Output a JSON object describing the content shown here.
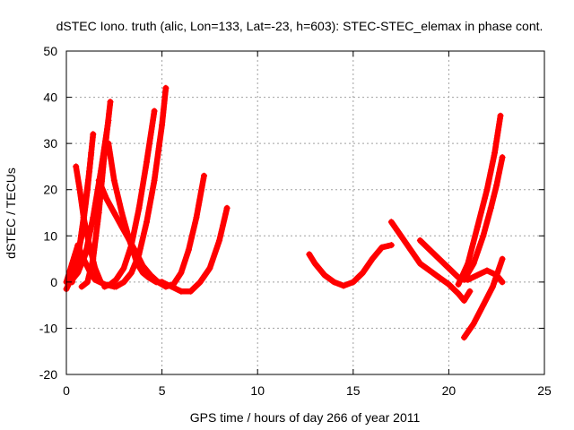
{
  "chart_data": {
    "type": "scatter",
    "title": "dSTEC Iono. truth (alic, Lon=133, Lat=-23, h=603): STEC-STEC_elemax in phase cont.",
    "xlabel": "GPS time / hours of day 266 of year 2011",
    "ylabel": "dSTEC  / TECUs",
    "xlim": [
      0,
      25
    ],
    "ylim": [
      -20,
      50
    ],
    "xticks": [
      0,
      5,
      10,
      15,
      20,
      25
    ],
    "yticks": [
      -20,
      -10,
      0,
      10,
      20,
      30,
      40,
      50
    ],
    "xtick_labels": [
      "0",
      "5",
      "10",
      "15",
      "20",
      "25"
    ],
    "ytick_labels": [
      "-20",
      "-10",
      "0",
      "10",
      "20",
      "30",
      "40",
      "50"
    ],
    "grid": true,
    "legend": "none",
    "marker": "+",
    "color": "#ff0000",
    "series": [
      {
        "x": [
          0.0,
          0.3,
          0.6,
          0.9,
          1.2,
          1.5,
          2.0,
          2.5
        ],
        "y": [
          0.0,
          4.0,
          8.0,
          5.0,
          2.5,
          0.5,
          -0.5,
          -1.0
        ]
      },
      {
        "x": [
          0.5,
          0.7,
          0.9,
          1.2,
          1.5,
          1.8
        ],
        "y": [
          25.0,
          20.0,
          14.0,
          8.0,
          3.0,
          0.0
        ]
      },
      {
        "x": [
          0.0,
          0.4,
          0.8,
          1.1,
          1.3
        ],
        "y": [
          -1.5,
          2.0,
          10.0,
          20.0,
          28.0
        ]
      },
      {
        "x": [
          0.3,
          0.6,
          0.9,
          1.2,
          1.4
        ],
        "y": [
          0.0,
          5.0,
          14.0,
          24.0,
          32.0
        ]
      },
      {
        "x": [
          0.8,
          1.1,
          1.4,
          1.7,
          2.0,
          2.3
        ],
        "y": [
          -1.0,
          0.0,
          5.0,
          15.0,
          28.0,
          39.0
        ]
      },
      {
        "x": [
          0.2,
          0.6,
          1.0,
          1.4,
          1.8,
          2.2
        ],
        "y": [
          0.0,
          2.0,
          6.0,
          14.0,
          24.0,
          35.0
        ]
      },
      {
        "x": [
          2.2,
          2.5,
          2.9,
          3.3,
          3.7,
          4.0,
          4.3,
          4.7,
          5.0
        ],
        "y": [
          30.0,
          22.0,
          15.0,
          9.0,
          4.0,
          2.0,
          1.0,
          0.0,
          0.0
        ]
      },
      {
        "x": [
          2.0,
          2.3,
          2.6,
          3.0,
          3.4,
          3.8,
          4.2,
          4.6
        ],
        "y": [
          -1.0,
          -0.5,
          0.5,
          3.0,
          8.0,
          16.0,
          26.0,
          37.0
        ]
      },
      {
        "x": [
          2.6,
          3.0,
          3.4,
          3.8,
          4.2,
          4.6,
          5.0,
          5.2
        ],
        "y": [
          -1.0,
          0.0,
          2.0,
          6.0,
          13.0,
          22.0,
          34.0,
          42.0
        ]
      },
      {
        "x": [
          1.7,
          2.1,
          2.5,
          2.9,
          3.3,
          3.7,
          4.0,
          4.4,
          4.8,
          5.2,
          5.6,
          6.0,
          6.4,
          6.8,
          7.2
        ],
        "y": [
          22.0,
          18.0,
          15.0,
          12.0,
          9.0,
          6.0,
          3.5,
          1.5,
          0.0,
          -1.0,
          -0.5,
          2.0,
          7.0,
          14.0,
          23.0
        ]
      },
      {
        "x": [
          5.0,
          5.5,
          6.0,
          6.5,
          7.0,
          7.5,
          8.0,
          8.4
        ],
        "y": [
          0.0,
          -1.0,
          -2.0,
          -2.0,
          0.0,
          3.0,
          9.0,
          16.0
        ]
      },
      {
        "x": [
          12.7,
          13.0,
          13.5,
          14.0,
          14.5,
          15.0,
          15.5,
          16.0,
          16.5,
          17.0
        ],
        "y": [
          6.0,
          4.0,
          1.5,
          0.0,
          -0.8,
          0.0,
          2.0,
          5.0,
          7.5,
          8.0
        ]
      },
      {
        "x": [
          17.0,
          17.5,
          18.0,
          18.5,
          19.0,
          19.5,
          20.0,
          20.5,
          20.8,
          21.1
        ],
        "y": [
          13.0,
          10.0,
          7.0,
          4.0,
          2.5,
          1.0,
          -0.5,
          -2.5,
          -4.0,
          -2.0
        ]
      },
      {
        "x": [
          18.5,
          19.0,
          19.5,
          20.0,
          20.5,
          21.0,
          21.5,
          22.0,
          22.5,
          22.8
        ],
        "y": [
          9.0,
          7.0,
          5.0,
          3.0,
          1.0,
          0.5,
          1.5,
          2.5,
          1.5,
          0.0
        ]
      },
      {
        "x": [
          20.5,
          21.0,
          21.5,
          22.0,
          22.4,
          22.7
        ],
        "y": [
          -0.5,
          4.0,
          12.0,
          20.0,
          28.0,
          36.0
        ]
      },
      {
        "x": [
          20.8,
          21.3,
          21.8,
          22.2,
          22.5,
          22.8
        ],
        "y": [
          0.5,
          4.0,
          10.0,
          16.0,
          21.0,
          27.0
        ]
      },
      {
        "x": [
          20.8,
          21.3,
          21.8,
          22.3,
          22.8
        ],
        "y": [
          -12.0,
          -9.0,
          -5.0,
          -1.0,
          5.0
        ]
      }
    ]
  }
}
